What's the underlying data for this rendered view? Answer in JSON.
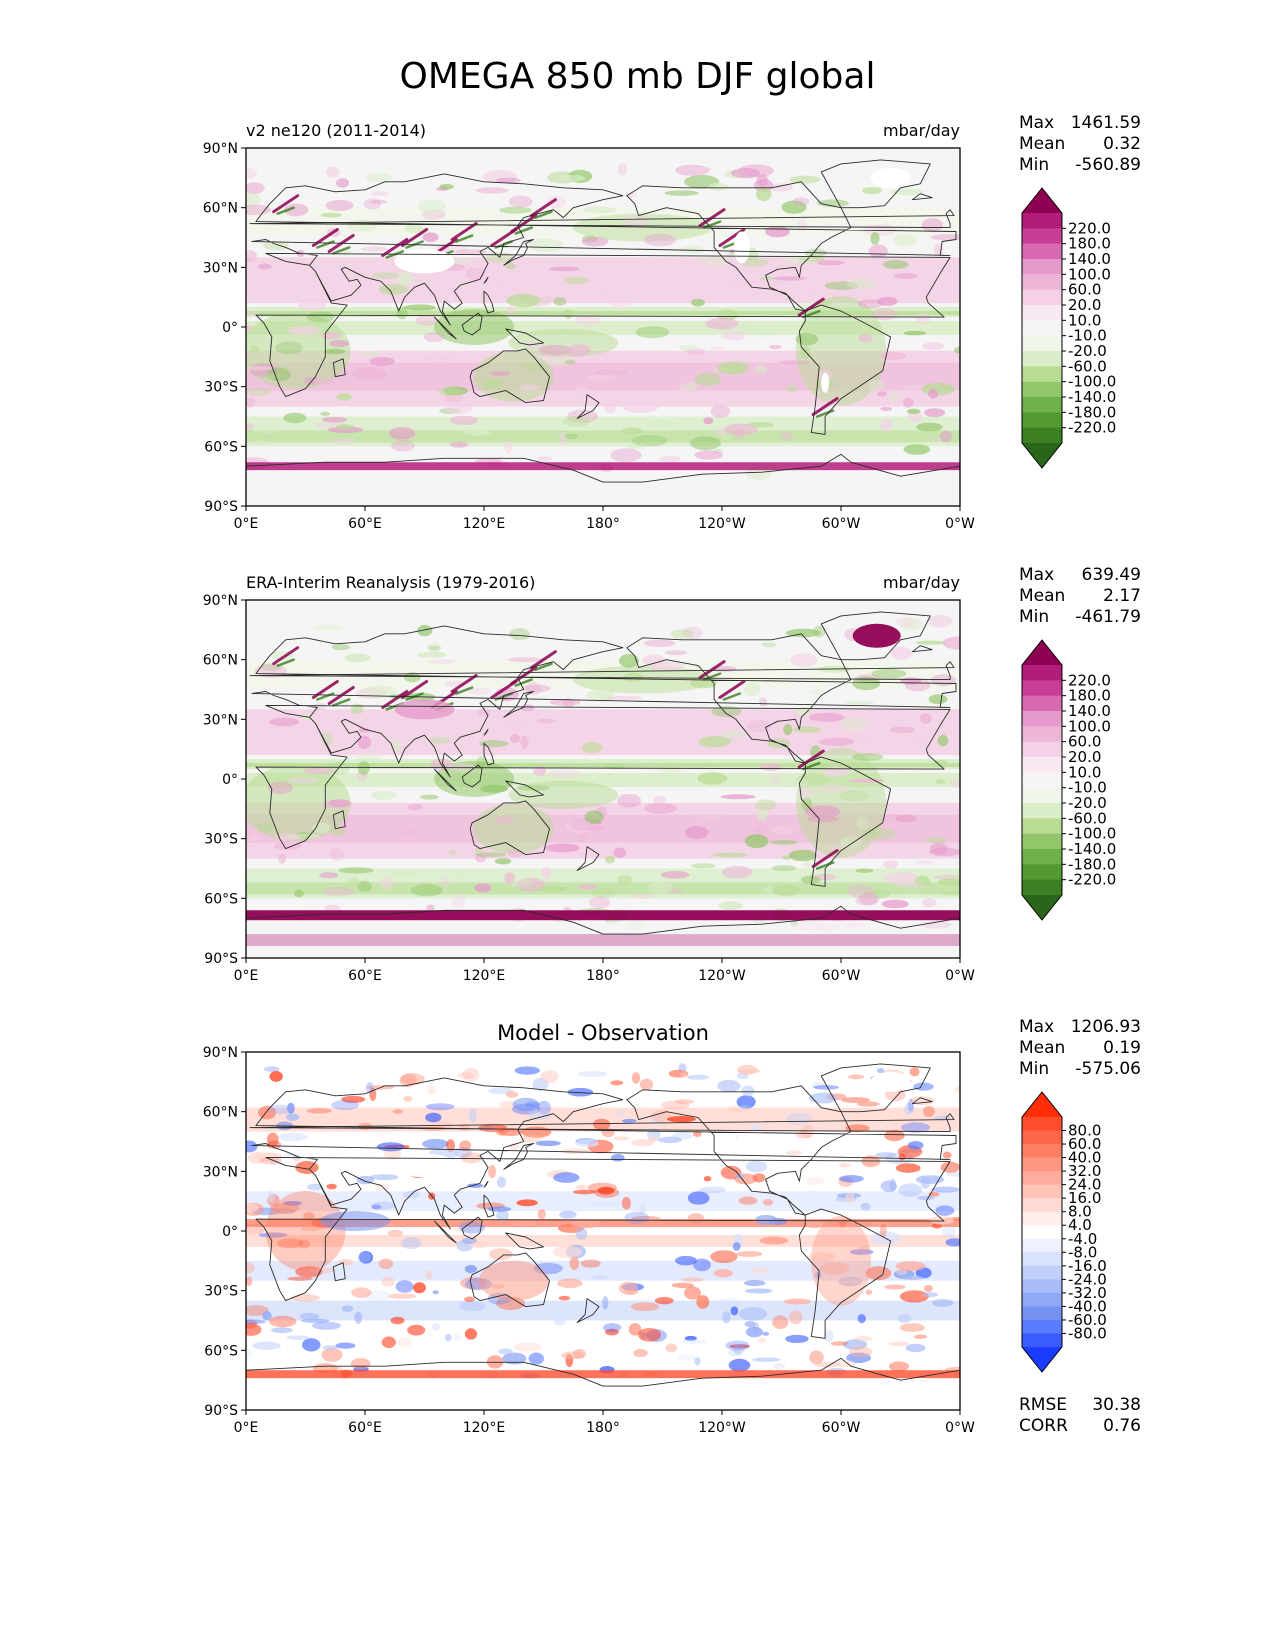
{
  "title": "OMEGA 850 mb DJF global",
  "colors": {
    "omega_levels": [
      "#2a6619",
      "#3b7f22",
      "#539a33",
      "#6fb04a",
      "#93c66a",
      "#b8dc94",
      "#d9edc8",
      "#f1f6ea",
      "#f6f5f6",
      "#f9e9f2",
      "#f4d1e6",
      "#edb6d7",
      "#e59acb",
      "#d86ab2",
      "#c83d95",
      "#b31d7a",
      "#8e0152"
    ],
    "diff_levels": [
      "#1a3cff",
      "#3a5cff",
      "#5a7cff",
      "#7592f2",
      "#90a8f5",
      "#a8bdf8",
      "#c0d0fb",
      "#d8e2fd",
      "#eef2fe",
      "#ffffff",
      "#ffeeea",
      "#ffdad2",
      "#ffc4b7",
      "#ffad9c",
      "#ff9680",
      "#ff7f64",
      "#ff6649",
      "#ff4d2e",
      "#ff2e08"
    ],
    "coast": "#2b2b2b"
  },
  "panels": [
    {
      "left_title": "v2 ne120 (2011-2014)",
      "center_title": "",
      "units": "mbar/day",
      "stats": {
        "max_label": "Max",
        "max": "1461.59",
        "mean_label": "Mean",
        "mean": "0.32",
        "min_label": "Min",
        "min": "-560.89"
      },
      "colorbar": {
        "scheme": "omega",
        "labels": [
          "220.0",
          "180.0",
          "140.0",
          "100.0",
          "60.0",
          "20.0",
          "10.0",
          "-10.0",
          "-20.0",
          "-60.0",
          "-100.0",
          "-140.0",
          "-180.0",
          "-220.0"
        ]
      },
      "extra": []
    },
    {
      "left_title": "ERA-Interim Reanalysis (1979-2016)",
      "center_title": "",
      "units": "mbar/day",
      "stats": {
        "max_label": "Max",
        "max": "639.49",
        "mean_label": "Mean",
        "mean": "2.17",
        "min_label": "Min",
        "min": "-461.79"
      },
      "colorbar": {
        "scheme": "omega",
        "labels": [
          "220.0",
          "180.0",
          "140.0",
          "100.0",
          "60.0",
          "20.0",
          "10.0",
          "-10.0",
          "-20.0",
          "-60.0",
          "-100.0",
          "-140.0",
          "-180.0",
          "-220.0"
        ]
      },
      "extra": []
    },
    {
      "left_title": "",
      "center_title": "Model - Observation",
      "units": "",
      "stats": {
        "max_label": "Max",
        "max": "1206.93",
        "mean_label": "Mean",
        "mean": "0.19",
        "min_label": "Min",
        "min": "-575.06"
      },
      "colorbar": {
        "scheme": "diff",
        "labels": [
          "80.0",
          "60.0",
          "40.0",
          "32.0",
          "24.0",
          "16.0",
          "8.0",
          "4.0",
          "-4.0",
          "-8.0",
          "-16.0",
          "-24.0",
          "-32.0",
          "-40.0",
          "-60.0",
          "-80.0"
        ]
      },
      "extra": [
        {
          "label": "RMSE",
          "value": "30.38"
        },
        {
          "label": "CORR",
          "value": "0.76"
        }
      ]
    }
  ],
  "chart_data": {
    "type": "heatmap",
    "title": "OMEGA 850 mb DJF global",
    "variable": "OMEGA 850 mb",
    "season": "DJF",
    "units": "mbar/day",
    "x_ticks": [
      "0°E",
      "60°E",
      "120°E",
      "180°",
      "120°W",
      "60°W",
      "0°W"
    ],
    "x_tick_values": [
      0,
      60,
      120,
      180,
      240,
      300,
      360
    ],
    "y_ticks": [
      "90°N",
      "60°N",
      "30°N",
      "0°",
      "30°S",
      "60°S",
      "90°S"
    ],
    "y_tick_values": [
      90,
      60,
      30,
      0,
      -30,
      -60,
      -90
    ],
    "xlim": [
      0,
      360
    ],
    "ylim": [
      -90,
      90
    ],
    "series": [
      {
        "name": "v2 ne120 (2011-2014)",
        "max": 1461.59,
        "mean": 0.32,
        "min": -560.89
      },
      {
        "name": "ERA-Interim Reanalysis (1979-2016)",
        "max": 639.49,
        "mean": 2.17,
        "min": -461.79
      },
      {
        "name": "Model - Observation",
        "max": 1206.93,
        "mean": 0.19,
        "min": -575.06,
        "rmse": 30.38,
        "corr": 0.76
      }
    ]
  }
}
